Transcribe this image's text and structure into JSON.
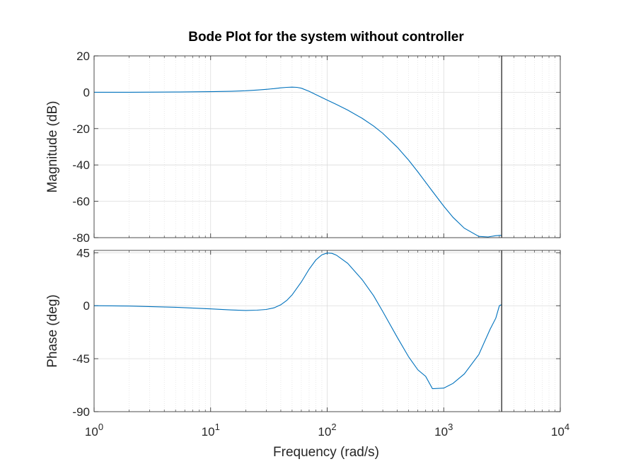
{
  "chart_data": {
    "type": "line",
    "title": "Bode Plot for the system without controller",
    "xlabel": "Frequency  (rad/s)",
    "xscale": "log",
    "xlim": [
      1,
      10000
    ],
    "x_ticks": [
      {
        "value": 1,
        "base": "10",
        "exp": "0"
      },
      {
        "value": 10,
        "base": "10",
        "exp": "1"
      },
      {
        "value": 100,
        "base": "10",
        "exp": "2"
      },
      {
        "value": 1000,
        "base": "10",
        "exp": "3"
      },
      {
        "value": 10000,
        "base": "10",
        "exp": "4"
      }
    ],
    "grid": true,
    "minor_grid": true,
    "line_color": "#0072BD",
    "cursor_line_color": "#262626",
    "cursor_x": 3141.6,
    "panels": [
      {
        "id": "magnitude",
        "ylabel": "Magnitude (dB)",
        "ylim": [
          -80,
          20
        ],
        "yticks": [
          20,
          0,
          -20,
          -40,
          -60,
          -80
        ],
        "ytick_labels": [
          "20",
          "0",
          "-20",
          "-40",
          "-60",
          "-80"
        ],
        "series": [
          {
            "x": [
              1,
              2,
              5,
              10,
              15,
              20,
              25,
              30,
              35,
              40,
              45,
              50,
              55,
              60,
              70,
              80,
              90,
              100,
              120,
              150,
              200,
              250,
              300,
              400,
              500,
              600,
              800,
              1000,
              1200,
              1500,
              2000,
              2400,
              2800,
              3141.6
            ],
            "y": [
              0,
              0,
              0.1,
              0.3,
              0.5,
              0.8,
              1.2,
              1.6,
              2.0,
              2.4,
              2.7,
              2.8,
              2.7,
              2.2,
              0.5,
              -1.3,
              -2.9,
              -4.3,
              -6.7,
              -9.8,
              -14.4,
              -18.6,
              -22.6,
              -30.3,
              -37.4,
              -43.8,
              -54.5,
              -62.7,
              -68.8,
              -74.8,
              -79.3,
              -79.6,
              -78.9,
              -78.7
            ]
          }
        ]
      },
      {
        "id": "phase",
        "ylabel": "Phase (deg)",
        "ylim": [
          -90,
          47
        ],
        "yticks": [
          45,
          0,
          -45,
          -90
        ],
        "ytick_labels": [
          "45",
          "0",
          "-45",
          "-90"
        ],
        "series": [
          {
            "x": [
              1,
              2,
              5,
              10,
              15,
              20,
              25,
              30,
              35,
              40,
              45,
              50,
              60,
              70,
              80,
              90,
              100,
              110,
              120,
              150,
              200,
              250,
              300,
              400,
              500,
              600,
              700,
              800,
              1000,
              1200,
              1500,
              2000,
              2500,
              2800,
              3000,
              3141.6
            ],
            "y": [
              0,
              -0.3,
              -1.3,
              -2.7,
              -3.6,
              -4.0,
              -3.8,
              -3.2,
              -1.8,
              0.8,
              4.5,
              9.2,
              20.2,
              31.1,
              38.9,
              43.3,
              44.8,
              44.5,
              43.0,
              36.0,
              22.0,
              8.5,
              -5.0,
              -27.0,
              -43.5,
              -54.5,
              -60.0,
              -70.5,
              -70.0,
              -66.0,
              -58.0,
              -41.5,
              -20.0,
              -10.5,
              0.0,
              1.0
            ]
          }
        ]
      }
    ]
  }
}
